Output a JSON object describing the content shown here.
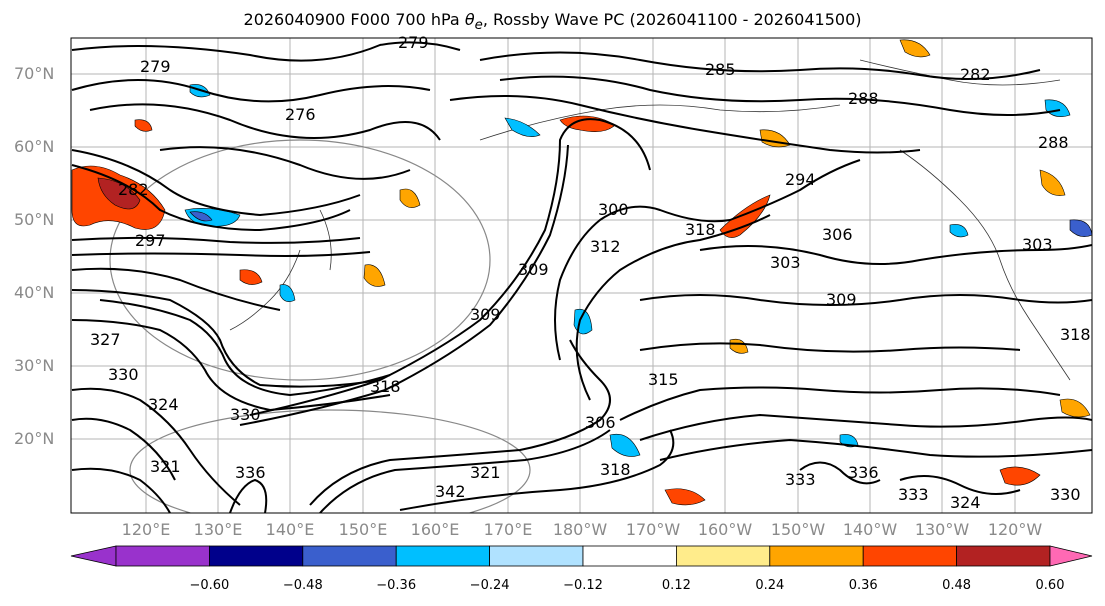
{
  "title_parts": {
    "prefix": "2026040900 F000 700 hPa ",
    "theta": "θ",
    "sub": "e",
    "suffix": ", Rossby Wave PC (2026041100 - 2026041500)"
  },
  "latitudes": [
    "70°N",
    "60°N",
    "50°N",
    "40°N",
    "30°N",
    "20°N"
  ],
  "longitudes": [
    "120°E",
    "130°E",
    "140°E",
    "150°E",
    "160°E",
    "170°E",
    "180°W",
    "170°W",
    "160°W",
    "150°W",
    "140°W",
    "130°W",
    "120°W"
  ],
  "contour_labels": [
    "279",
    "279",
    "276",
    "285",
    "282",
    "288",
    "288",
    "282",
    "297",
    "294",
    "306",
    "303",
    "303",
    "309",
    "309",
    "309",
    "300",
    "318",
    "312",
    "315",
    "306",
    "318",
    "330",
    "330",
    "327",
    "324",
    "321",
    "336",
    "333",
    "342",
    "318",
    "336",
    "333",
    "324",
    "321",
    "330",
    "318"
  ],
  "colorbar": {
    "ticks": [
      "−0.60",
      "−0.48",
      "−0.36",
      "−0.24",
      "−0.12",
      "0.12",
      "0.24",
      "0.36",
      "0.48",
      "0.60"
    ],
    "colors": [
      "#9932cc",
      "#00008b",
      "#3a5fcd",
      "#00bfff",
      "#b0e2ff",
      "#ffffff",
      "#ffec8b",
      "#ffa500",
      "#ff4500",
      "#b22222",
      "#ff82ab",
      "#ff69b4"
    ]
  }
}
